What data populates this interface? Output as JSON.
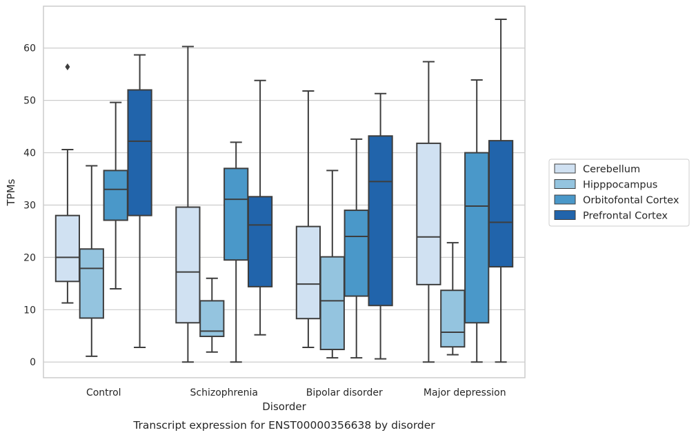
{
  "chart_data": {
    "type": "boxplot",
    "caption": "Transcript expression for ENST00000356638 by disorder",
    "xlabel": "Disorder",
    "ylabel": "TPMs",
    "ylim": [
      -3,
      68
    ],
    "yticks": [
      0,
      10,
      20,
      30,
      40,
      50,
      60
    ],
    "grid": true,
    "legend_position": "right",
    "categories": [
      "Control",
      "Schizophrenia",
      "Bipolar disorder",
      "Major depression"
    ],
    "series": [
      {
        "name": "Cerebellum",
        "color": "#d0e1f2",
        "boxes": [
          {
            "whislo": 11.3,
            "q1": 15.4,
            "med": 20.0,
            "q3": 28.0,
            "whishi": 40.6,
            "fliers": [
              56.4
            ]
          },
          {
            "whislo": 0.0,
            "q1": 7.5,
            "med": 17.2,
            "q3": 29.6,
            "whishi": 60.3,
            "fliers": []
          },
          {
            "whislo": 2.8,
            "q1": 8.3,
            "med": 14.9,
            "q3": 25.9,
            "whishi": 51.8,
            "fliers": []
          },
          {
            "whislo": 0.0,
            "q1": 14.8,
            "med": 23.9,
            "q3": 41.8,
            "whishi": 57.4,
            "fliers": []
          }
        ]
      },
      {
        "name": "Hipppocampus",
        "color": "#94c4df",
        "boxes": [
          {
            "whislo": 1.1,
            "q1": 8.4,
            "med": 17.9,
            "q3": 21.6,
            "whishi": 37.5,
            "fliers": []
          },
          {
            "whislo": 1.9,
            "q1": 4.9,
            "med": 5.9,
            "q3": 11.7,
            "whishi": 16.0,
            "fliers": []
          },
          {
            "whislo": 0.8,
            "q1": 2.4,
            "med": 11.7,
            "q3": 20.1,
            "whishi": 36.6,
            "fliers": []
          },
          {
            "whislo": 1.4,
            "q1": 2.9,
            "med": 5.7,
            "q3": 13.7,
            "whishi": 22.8,
            "fliers": []
          }
        ]
      },
      {
        "name": "Orbitofontal Cortex",
        "color": "#4a98c9",
        "boxes": [
          {
            "whislo": 14.0,
            "q1": 27.1,
            "med": 33.0,
            "q3": 36.6,
            "whishi": 49.6,
            "fliers": []
          },
          {
            "whislo": 0.0,
            "q1": 19.5,
            "med": 31.1,
            "q3": 37.0,
            "whishi": 42.0,
            "fliers": []
          },
          {
            "whislo": 0.8,
            "q1": 12.6,
            "med": 24.0,
            "q3": 29.0,
            "whishi": 42.6,
            "fliers": []
          },
          {
            "whislo": 0.0,
            "q1": 7.5,
            "med": 29.8,
            "q3": 40.0,
            "whishi": 53.9,
            "fliers": []
          }
        ]
      },
      {
        "name": "Prefrontal Cortex",
        "color": "#2164ab",
        "boxes": [
          {
            "whislo": 2.8,
            "q1": 28.0,
            "med": 42.2,
            "q3": 52.0,
            "whishi": 58.7,
            "fliers": []
          },
          {
            "whislo": 5.2,
            "q1": 14.4,
            "med": 26.2,
            "q3": 31.6,
            "whishi": 53.8,
            "fliers": []
          },
          {
            "whislo": 0.6,
            "q1": 10.8,
            "med": 34.5,
            "q3": 43.2,
            "whishi": 51.3,
            "fliers": []
          },
          {
            "whislo": 0.0,
            "q1": 18.2,
            "med": 26.7,
            "q3": 42.3,
            "whishi": 65.5,
            "fliers": []
          }
        ]
      }
    ]
  }
}
